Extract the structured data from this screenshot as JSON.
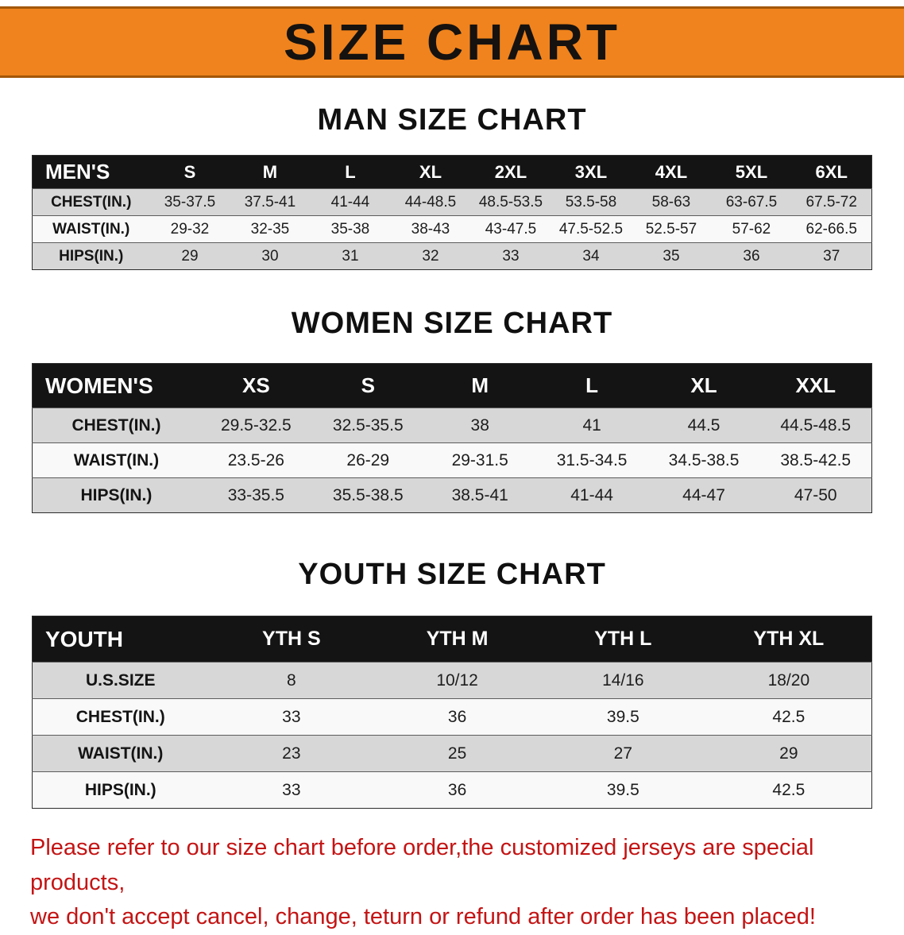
{
  "banner": {
    "title": "SIZE CHART",
    "bg_color": "#f0831d",
    "text_color": "#151210"
  },
  "sections": [
    {
      "heading": "MAN SIZE CHART",
      "label": "MEN'S",
      "columns": [
        "S",
        "M",
        "L",
        "XL",
        "2XL",
        "3XL",
        "4XL",
        "5XL",
        "6XL"
      ],
      "rows": [
        {
          "label": "CHEST(IN.)",
          "values": [
            "35-37.5",
            "37.5-41",
            "41-44",
            "44-48.5",
            "48.5-53.5",
            "53.5-58",
            "58-63",
            "63-67.5",
            "67.5-72"
          ]
        },
        {
          "label": "WAIST(IN.)",
          "values": [
            "29-32",
            "32-35",
            "35-38",
            "38-43",
            "43-47.5",
            "47.5-52.5",
            "52.5-57",
            "57-62",
            "62-66.5"
          ]
        },
        {
          "label": "HIPS(IN.)",
          "values": [
            "29",
            "30",
            "31",
            "32",
            "33",
            "34",
            "35",
            "36",
            "37"
          ]
        }
      ]
    },
    {
      "heading": "WOMEN SIZE CHART",
      "label": "WOMEN'S",
      "columns": [
        "XS",
        "S",
        "M",
        "L",
        "XL",
        "XXL"
      ],
      "rows": [
        {
          "label": "CHEST(IN.)",
          "values": [
            "29.5-32.5",
            "32.5-35.5",
            "38",
            "41",
            "44.5",
            "44.5-48.5"
          ]
        },
        {
          "label": "WAIST(IN.)",
          "values": [
            "23.5-26",
            "26-29",
            "29-31.5",
            "31.5-34.5",
            "34.5-38.5",
            "38.5-42.5"
          ]
        },
        {
          "label": "HIPS(IN.)",
          "values": [
            "33-35.5",
            "35.5-38.5",
            "38.5-41",
            "41-44",
            "44-47",
            "47-50"
          ]
        }
      ]
    },
    {
      "heading": "YOUTH SIZE CHART",
      "label": "YOUTH",
      "columns": [
        "YTH S",
        "YTH M",
        "YTH L",
        "YTH XL"
      ],
      "rows": [
        {
          "label": "U.S.SIZE",
          "values": [
            "8",
            "10/12",
            "14/16",
            "18/20"
          ]
        },
        {
          "label": "CHEST(IN.)",
          "values": [
            "33",
            "36",
            "39.5",
            "42.5"
          ]
        },
        {
          "label": "WAIST(IN.)",
          "values": [
            "23",
            "25",
            "27",
            "29"
          ]
        },
        {
          "label": "HIPS(IN.)",
          "values": [
            "33",
            "36",
            "39.5",
            "42.5"
          ]
        }
      ]
    }
  ],
  "footer": {
    "line1": "Please refer to our size chart before order,the customized jerseys are special products,",
    "line2": "we don't accept cancel, change, teturn or refund after order has been placed!",
    "text_color": "#c41414"
  }
}
